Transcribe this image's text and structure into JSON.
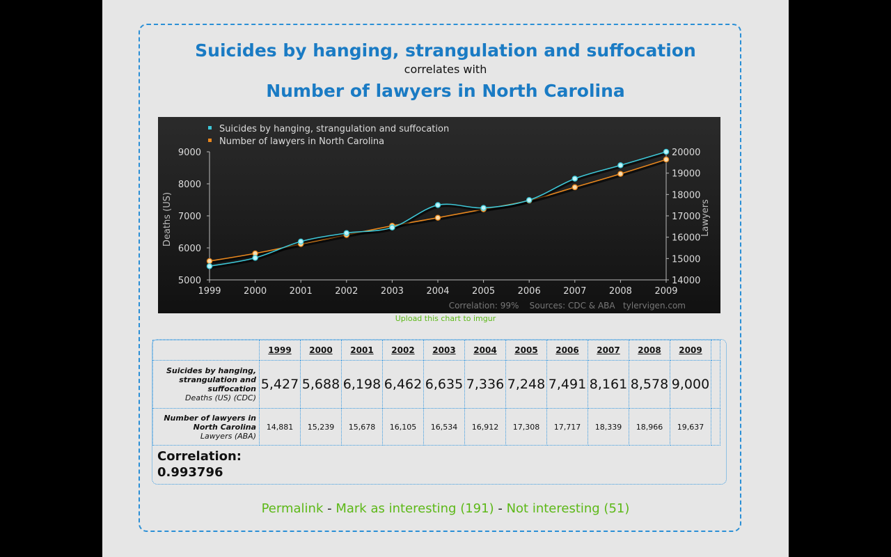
{
  "header": {
    "title_var1": "Suicides by hanging, strangulation and suffocation",
    "correlates_text": "correlates with",
    "title_var2": "Number of lawyers in North Carolina"
  },
  "chart_data": {
    "type": "line",
    "x": [
      1999,
      2000,
      2001,
      2002,
      2003,
      2004,
      2005,
      2006,
      2007,
      2008,
      2009
    ],
    "series": [
      {
        "name": "Suicides by hanging, strangulation and suffocation",
        "axis": "left",
        "color": "#3ec8d8",
        "values": [
          5427,
          5688,
          6198,
          6462,
          6635,
          7336,
          7248,
          7491,
          8161,
          8578,
          9000
        ]
      },
      {
        "name": "Number of lawyers in North Carolina",
        "axis": "right",
        "color": "#e8871e",
        "values": [
          14881,
          15239,
          15678,
          16105,
          16534,
          16912,
          17308,
          17717,
          18339,
          18966,
          19637
        ]
      }
    ],
    "ylabel": "Deaths (US)",
    "y2label": "Lawyers",
    "ylim": [
      5000,
      9000
    ],
    "y2lim": [
      14000,
      20000
    ],
    "yticks": [
      "9000",
      "8000",
      "7000",
      "6000",
      "5000"
    ],
    "y2ticks": [
      "20000",
      "19000",
      "18000",
      "17000",
      "16000",
      "15000",
      "14000"
    ],
    "xticks": [
      "1999",
      "2000",
      "2001",
      "2002",
      "2003",
      "2004",
      "2005",
      "2006",
      "2007",
      "2008",
      "2009"
    ],
    "legend": "top-left",
    "credits": "Correlation: 99%    Sources: CDC & ABA   tylervigen.com"
  },
  "upload_link": "Upload this chart to imgur",
  "table": {
    "years": [
      "1999",
      "2000",
      "2001",
      "2002",
      "2003",
      "2004",
      "2005",
      "2006",
      "2007",
      "2008",
      "2009"
    ],
    "row1": {
      "label": "Suicides by hanging, strangulation and suffocation",
      "unit": "Deaths (US) (CDC)",
      "values": [
        "5,427",
        "5,688",
        "6,198",
        "6,462",
        "6,635",
        "7,336",
        "7,248",
        "7,491",
        "8,161",
        "8,578",
        "9,000"
      ]
    },
    "row2": {
      "label": "Number of lawyers in North Carolina",
      "unit": "Lawyers (ABA)",
      "values": [
        "14,881",
        "15,239",
        "15,678",
        "16,105",
        "16,534",
        "16,912",
        "17,308",
        "17,717",
        "18,339",
        "18,966",
        "19,637"
      ]
    },
    "correlation_label": "Correlation:",
    "correlation_value": "0.993796"
  },
  "links": {
    "permalink": "Permalink",
    "separator": "-",
    "mark_interesting": "Mark as interesting (191)",
    "not_interesting": "Not interesting (51)"
  }
}
